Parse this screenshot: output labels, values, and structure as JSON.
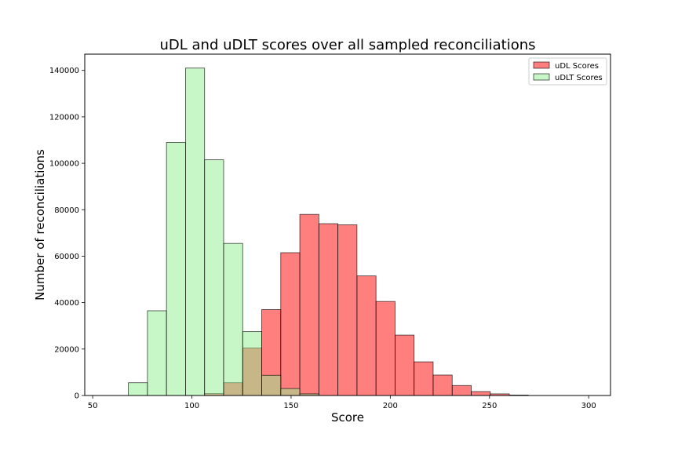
{
  "chart_data": {
    "type": "bar",
    "title": "uDL and uDLT scores over all sampled reconciliations",
    "xlabel": "Score",
    "ylabel": "Number of reconciliations",
    "xlim": [
      46,
      311
    ],
    "ylim": [
      0,
      147000
    ],
    "x_ticks": [
      50,
      100,
      150,
      200,
      250,
      300
    ],
    "y_ticks": [
      0,
      20000,
      40000,
      60000,
      80000,
      100000,
      120000,
      140000
    ],
    "legend_position": "top-right",
    "bin_edges": [
      68,
      77.6,
      87.2,
      96.8,
      106.4,
      116,
      125.6,
      135.2,
      144.8,
      154.4,
      164,
      173.6,
      183.2,
      192.8,
      202.4,
      212,
      221.6,
      231.2,
      240.8,
      250.4,
      260,
      269.6
    ],
    "series": [
      {
        "name": "uDL Scores",
        "color": "#ff0000",
        "values": [
          0,
          0,
          0,
          0,
          800,
          5500,
          20500,
          37000,
          61500,
          78000,
          74000,
          73500,
          51500,
          40500,
          26000,
          14500,
          8800,
          4300,
          1700,
          700,
          200
        ]
      },
      {
        "name": "uDLT Scores",
        "color": "#90ee90",
        "values": [
          5500,
          36500,
          109000,
          141000,
          101500,
          65500,
          27500,
          8700,
          3000,
          700,
          0,
          0,
          0,
          0,
          0,
          0,
          0,
          0,
          0,
          0,
          0
        ]
      }
    ]
  }
}
